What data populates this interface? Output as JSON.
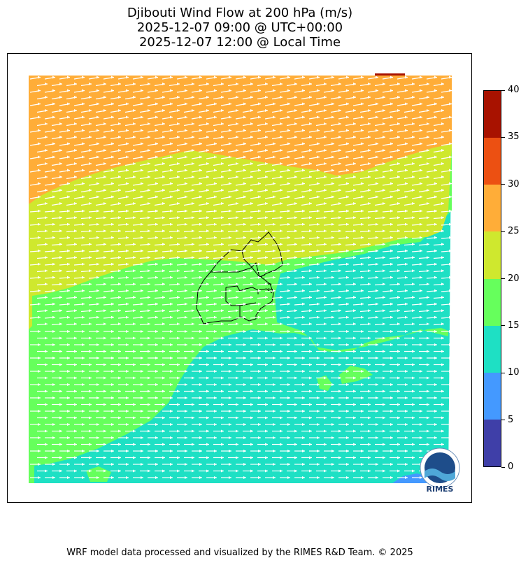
{
  "title": {
    "line1": "Djibouti Wind Flow at 200 hPa (m/s)",
    "line2": "2025-12-07 09:00 @ UTC+00:00",
    "line3": "2025-12-07 12:00 @ Local Time"
  },
  "colorbar": {
    "ticks": [
      "0",
      "5",
      "10",
      "15",
      "20",
      "25",
      "30",
      "35",
      "40"
    ],
    "bins": [
      {
        "range": "0-5",
        "color": "#3f3fa8"
      },
      {
        "range": "5-10",
        "color": "#4499ff"
      },
      {
        "range": "10-15",
        "color": "#1ee0c4"
      },
      {
        "range": "15-20",
        "color": "#66ff5c"
      },
      {
        "range": "20-25",
        "color": "#cfe82e"
      },
      {
        "range": "25-30",
        "color": "#ffad38"
      },
      {
        "range": "30-35",
        "color": "#ec5012"
      },
      {
        "range": "35-40",
        "color": "#a81200"
      }
    ]
  },
  "map": {
    "vector_color": "#ffffff",
    "boundary_color": "#000000",
    "wind_direction": "west-to-east"
  },
  "logo": {
    "text": "RIMES",
    "icon": "rimes-logo-icon"
  },
  "footer": "WRF model data processed and visualized by the RIMES R&D Team. © 2025"
}
